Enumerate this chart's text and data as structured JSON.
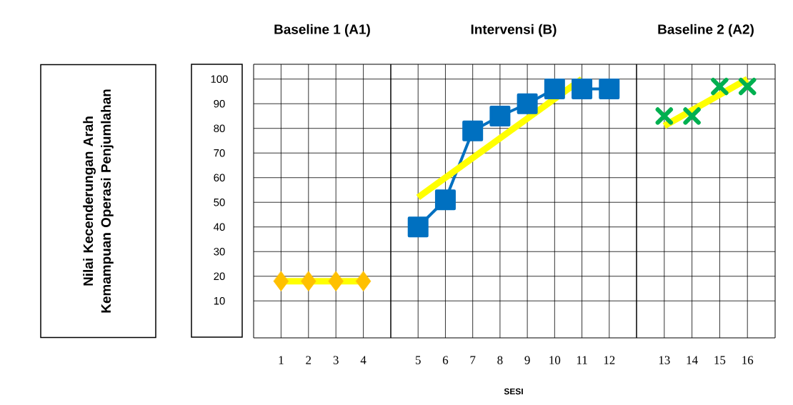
{
  "chart_data": [
    {
      "type": "line",
      "title": "Baseline 1 (A1)",
      "ylabel": "Nilai Kecenderungan Arah Kemampuan Operasi Penjumlahan",
      "categories": [
        "1",
        "2",
        "3",
        "4"
      ],
      "ylim": [
        -5,
        106
      ],
      "yticks": [
        10,
        20,
        30,
        40,
        50,
        60,
        70,
        80,
        90,
        100
      ],
      "grid": true,
      "series": [
        {
          "type": "scatter",
          "color": "#ffc000",
          "marker": "diamond",
          "values": [
            18,
            18,
            18,
            18
          ]
        },
        {
          "color": "#ffff00",
          "marker": "none",
          "x": [
            "1",
            "4"
          ],
          "values": [
            18,
            18
          ]
        }
      ]
    },
    {
      "type": "line",
      "title": "Intervensi (B)",
      "xlabel": "SESI",
      "categories": [
        "5",
        "6",
        "7",
        "8",
        "9",
        "10",
        "11",
        "12"
      ],
      "ylim": [
        -5,
        106
      ],
      "yticks": [
        10,
        20,
        30,
        40,
        50,
        60,
        70,
        80,
        90,
        100
      ],
      "grid": true,
      "tick_labels": "x",
      "series": [
        {
          "color": "#0070c0",
          "marker": "square",
          "values": [
            40,
            51,
            79,
            85,
            90,
            96,
            96,
            96
          ]
        },
        {
          "color": "#ffff00",
          "marker": "none",
          "x": [
            "5",
            "11"
          ],
          "values": [
            52,
            100
          ]
        }
      ]
    },
    {
      "type": "line",
      "title": "Baseline 2 (A2)",
      "categories": [
        "13",
        "14",
        "15",
        "16"
      ],
      "ylim": [
        -5,
        106
      ],
      "yticks": [
        10,
        20,
        30,
        40,
        50,
        60,
        70,
        80,
        90,
        100
      ],
      "grid": true,
      "tick_labels": "x",
      "series": [
        {
          "type": "scatter",
          "color": "#00b050",
          "marker": "cross",
          "values": [
            85,
            85,
            97,
            97
          ]
        },
        {
          "color": "#ffff00",
          "marker": "none",
          "x": [
            "13",
            "16"
          ],
          "values": [
            81,
            100
          ]
        }
      ]
    }
  ]
}
